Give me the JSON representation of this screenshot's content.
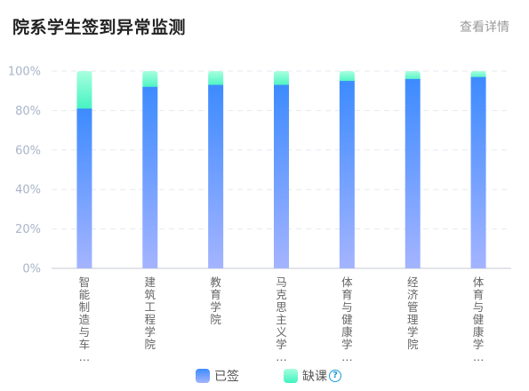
{
  "header": {
    "title": "院系学生签到异常监测",
    "more_label": "查看详情"
  },
  "chart_data": {
    "type": "bar",
    "stacked": true,
    "categories": [
      "智能制造与车\n…",
      "建筑工程学院",
      "教育学院",
      "马克思主义学\n…",
      "体育与健康学\n…",
      "经济管理学院",
      "体育与健康学\n…"
    ],
    "series": [
      {
        "name": "已签",
        "values": [
          81,
          92,
          93,
          93,
          95,
          96,
          97
        ]
      },
      {
        "name": "缺课",
        "values": [
          19,
          8,
          7,
          7,
          5,
          4,
          3
        ]
      }
    ],
    "ylim": [
      0,
      100
    ],
    "yticks": [
      "0%",
      "20%",
      "40%",
      "60%",
      "80%",
      "100%"
    ],
    "grid": true,
    "legend_position": "bottom-center",
    "colors": {
      "signed_top": "#3d8bff",
      "signed_bottom": "#a4b4ff",
      "absent_top": "#a8ffde",
      "absent_bottom": "#3ff2c0",
      "grid": "#e6eaf0",
      "axis": "#d0d4da",
      "tick_text": "#a8b4c8"
    }
  },
  "legend": {
    "signed_label": "已签",
    "absent_label": "缺课",
    "help_icon": "question-circle-icon"
  }
}
